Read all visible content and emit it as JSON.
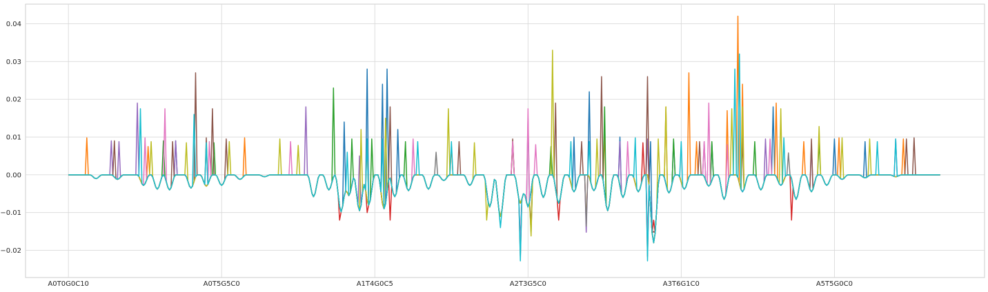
{
  "chart_data": {
    "type": "line",
    "title": "",
    "xlabel": "",
    "ylabel": "",
    "grid": true,
    "style": "seaborn-whitegrid",
    "n_points": 570,
    "x_tick_labels": [
      "A0T0G0C10",
      "A0T5G5C0",
      "A1T4G0C5",
      "A2T3G5C0",
      "A3T6G1C0",
      "A5T5G0C0"
    ],
    "x_tick_indices": [
      0,
      100,
      200,
      300,
      400,
      500
    ],
    "xlim": [
      -28,
      598
    ],
    "ylim": [
      -0.0272,
      0.0452
    ],
    "y_ticks": [
      -0.02,
      -0.01,
      0.0,
      0.01,
      0.02,
      0.03,
      0.04
    ],
    "y_tick_labels": [
      "−0.02",
      "−0.01",
      "0.00",
      "0.01",
      "0.02",
      "0.03",
      "0.04"
    ],
    "series": [
      {
        "color": "#1f77b4",
        "spikes": [
          [
            70,
            0.009
          ],
          [
            180,
            0.014
          ],
          [
            195,
            0.028
          ],
          [
            205,
            0.024
          ],
          [
            208,
            0.028
          ],
          [
            215,
            0.012
          ],
          [
            330,
            0.01
          ],
          [
            340,
            0.022
          ],
          [
            360,
            0.01
          ],
          [
            380,
            0.0088
          ],
          [
            395,
            0.009
          ],
          [
            420,
            0.0085
          ],
          [
            440,
            0.015
          ],
          [
            460,
            0.018
          ],
          [
            500,
            0.0095
          ],
          [
            520,
            0.0088
          ]
        ]
      },
      {
        "color": "#ff7f0e",
        "spikes": [
          [
            12,
            0.0098
          ],
          [
            52,
            0.0075
          ],
          [
            115,
            0.0098
          ],
          [
            195,
            0.009
          ],
          [
            250,
            0.0075
          ],
          [
            290,
            0.0085
          ],
          [
            350,
            0.012
          ],
          [
            390,
            0.018
          ],
          [
            410,
            0.0088
          ],
          [
            405,
            0.027
          ],
          [
            430,
            0.017
          ],
          [
            437,
            0.042
          ],
          [
            440,
            0.024
          ],
          [
            462,
            0.019
          ],
          [
            480,
            0.0088
          ],
          [
            503,
            0.0098
          ],
          [
            545,
            0.0095
          ]
        ]
      },
      {
        "color": "#2ca02c",
        "spikes": [
          [
            62,
            0.009
          ],
          [
            95,
            0.0085
          ],
          [
            173,
            0.023
          ],
          [
            185,
            0.0095
          ],
          [
            198,
            0.0095
          ],
          [
            220,
            0.0088
          ],
          [
            290,
            0.0085
          ],
          [
            315,
            0.0075
          ],
          [
            350,
            0.018
          ],
          [
            395,
            0.0095
          ],
          [
            420,
            0.0088
          ],
          [
            448,
            0.0088
          ],
          [
            490,
            0.0088
          ]
        ]
      },
      {
        "color": "#d62728",
        "spikes": [
          [
            177,
            -0.012
          ],
          [
            195,
            -0.01
          ],
          [
            210,
            -0.012
          ],
          [
            295,
            -0.012
          ],
          [
            320,
            -0.012
          ],
          [
            382,
            -0.012
          ],
          [
            375,
            0.0085
          ],
          [
            472,
            -0.012
          ]
        ]
      },
      {
        "color": "#9467bd",
        "spikes": [
          [
            28,
            0.009
          ],
          [
            33,
            0.0088
          ],
          [
            45,
            0.019
          ],
          [
            70,
            0.009
          ],
          [
            155,
            0.018
          ],
          [
            190,
            0.005
          ],
          [
            205,
            0.0095
          ],
          [
            300,
            0.015
          ],
          [
            360,
            0.0088
          ],
          [
            378,
            0.0095
          ],
          [
            415,
            0.0088
          ],
          [
            455,
            0.0095
          ],
          [
            485,
            0.0078
          ],
          [
            540,
            0.0095
          ]
        ]
      },
      {
        "color": "#8c564b",
        "spikes": [
          [
            30,
            0.009
          ],
          [
            68,
            0.0088
          ],
          [
            83,
            0.027
          ],
          [
            90,
            0.0098
          ],
          [
            94,
            0.0175
          ],
          [
            103,
            0.0095
          ],
          [
            210,
            0.018
          ],
          [
            255,
            0.0088
          ],
          [
            290,
            0.0095
          ],
          [
            302,
            0.018
          ],
          [
            318,
            0.019
          ],
          [
            335,
            0.0088
          ],
          [
            348,
            0.026
          ],
          [
            378,
            0.026
          ],
          [
            382,
            0.026
          ],
          [
            412,
            0.0088
          ],
          [
            440,
            0.0095
          ],
          [
            485,
            0.0095
          ],
          [
            547,
            0.0095
          ],
          [
            552,
            0.0098
          ]
        ]
      },
      {
        "color": "#e377c2",
        "spikes": [
          [
            50,
            0.0098
          ],
          [
            63,
            0.0175
          ],
          [
            92,
            0.0088
          ],
          [
            145,
            0.0088
          ],
          [
            225,
            0.0095
          ],
          [
            290,
            0.0088
          ],
          [
            300,
            0.0175
          ],
          [
            305,
            0.008
          ],
          [
            365,
            0.0088
          ],
          [
            415,
            0.0088
          ],
          [
            418,
            0.019
          ],
          [
            430,
            0.008
          ],
          [
            458,
            0.0095
          ]
        ]
      },
      {
        "color": "#7f7f7f",
        "spikes": [
          [
            240,
            0.006
          ],
          [
            470,
            0.0058
          ]
        ]
      },
      {
        "color": "#bcbd22",
        "spikes": [
          [
            54,
            0.0088
          ],
          [
            77,
            0.0085
          ],
          [
            105,
            0.0088
          ],
          [
            138,
            0.0095
          ],
          [
            150,
            0.0078
          ],
          [
            191,
            0.012
          ],
          [
            207,
            0.015
          ],
          [
            248,
            0.0175
          ],
          [
            265,
            0.0085
          ],
          [
            273,
            -0.012
          ],
          [
            316,
            0.033
          ],
          [
            345,
            0.0095
          ],
          [
            385,
            0.0095
          ],
          [
            390,
            0.018
          ],
          [
            433,
            0.0175
          ],
          [
            440,
            0.018
          ],
          [
            465,
            0.0175
          ],
          [
            490,
            0.0128
          ],
          [
            505,
            0.0098
          ],
          [
            523,
            0.0095
          ]
        ]
      },
      {
        "color": "#17becf",
        "spikes": [
          [
            47,
            0.0175
          ],
          [
            82,
            0.016
          ],
          [
            90,
            0.0085
          ],
          [
            182,
            0.006
          ],
          [
            195,
            0.0095
          ],
          [
            205,
            0.0095
          ],
          [
            228,
            0.0088
          ],
          [
            250,
            0.0088
          ],
          [
            282,
            -0.014
          ],
          [
            328,
            0.0088
          ],
          [
            340,
            0.0088
          ],
          [
            370,
            0.0098
          ],
          [
            400,
            0.0088
          ],
          [
            435,
            0.028
          ],
          [
            438,
            0.032
          ],
          [
            467,
            0.0098
          ],
          [
            528,
            0.0088
          ],
          [
            540,
            0.0095
          ]
        ]
      }
    ],
    "shared_dips": [
      [
        18,
        -0.001
      ],
      [
        32,
        -0.0012
      ],
      [
        49,
        -0.0028
      ],
      [
        58,
        -0.0038
      ],
      [
        66,
        -0.004
      ],
      [
        80,
        -0.0035
      ],
      [
        90,
        -0.003
      ],
      [
        100,
        -0.0028
      ],
      [
        112,
        -0.0012
      ],
      [
        128,
        -0.0005
      ],
      [
        160,
        -0.0058
      ],
      [
        170,
        -0.004
      ],
      [
        178,
        -0.0098
      ],
      [
        183,
        -0.0055
      ],
      [
        190,
        -0.0095
      ],
      [
        196,
        -0.008
      ],
      [
        206,
        -0.009
      ],
      [
        213,
        -0.0058
      ],
      [
        222,
        -0.0042
      ],
      [
        235,
        -0.0038
      ],
      [
        245,
        -0.0015
      ],
      [
        262,
        -0.0028
      ],
      [
        275,
        -0.0085
      ],
      [
        282,
        -0.011
      ],
      [
        295,
        -0.0075
      ],
      [
        300,
        -0.0085
      ],
      [
        310,
        -0.006
      ],
      [
        320,
        -0.0075
      ],
      [
        330,
        -0.0045
      ],
      [
        343,
        -0.0042
      ],
      [
        352,
        -0.0095
      ],
      [
        362,
        -0.006
      ],
      [
        372,
        -0.0045
      ],
      [
        382,
        -0.018
      ],
      [
        392,
        -0.0048
      ],
      [
        402,
        -0.0038
      ],
      [
        418,
        -0.003
      ],
      [
        428,
        -0.0065
      ],
      [
        440,
        -0.0045
      ],
      [
        452,
        -0.004
      ],
      [
        465,
        -0.0028
      ],
      [
        475,
        -0.0065
      ],
      [
        485,
        -0.0045
      ],
      [
        495,
        -0.0028
      ],
      [
        505,
        -0.0012
      ],
      [
        520,
        -0.0008
      ],
      [
        540,
        -0.0005
      ]
    ],
    "deep_dips": [
      [
        295,
        -0.024
      ],
      [
        302,
        -0.018
      ],
      [
        338,
        -0.016
      ],
      [
        378,
        -0.024
      ],
      [
        382,
        -0.02
      ]
    ]
  }
}
